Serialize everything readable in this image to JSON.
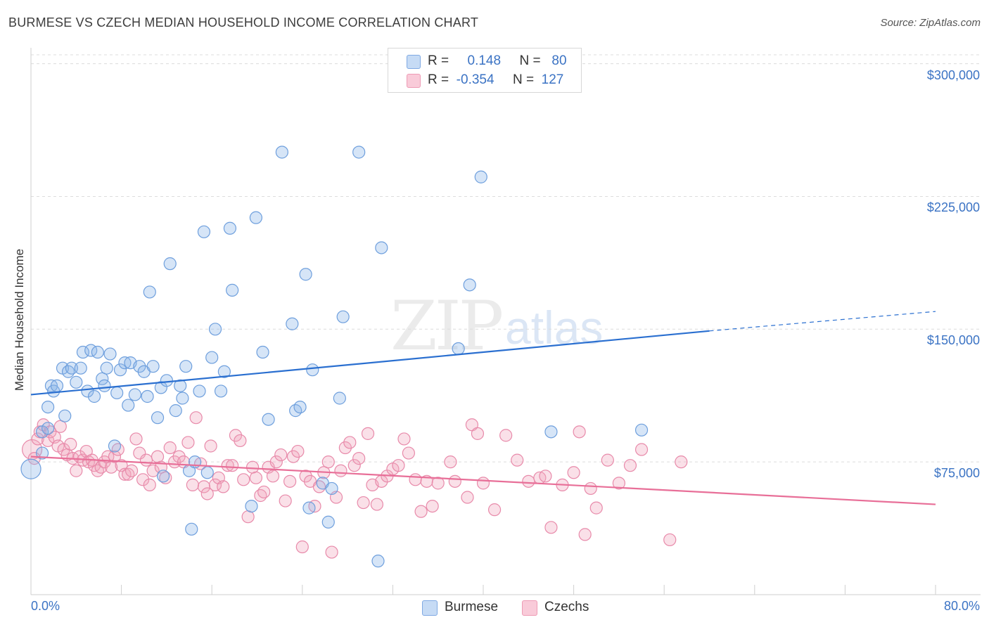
{
  "title": "BURMESE VS CZECH MEDIAN HOUSEHOLD INCOME CORRELATION CHART",
  "source": "Source: ZipAtlas.com",
  "watermark": {
    "zip": "ZIP",
    "atlas": "atlas"
  },
  "legend_top": [
    {
      "r_label": "R =",
      "r_value": "0.148",
      "n_label": "N =",
      "n_value": "80"
    },
    {
      "r_label": "R =",
      "r_value": "-0.354",
      "n_label": "N =",
      "n_value": "127"
    }
  ],
  "legend_bottom": [
    "Burmese",
    "Czechs"
  ],
  "chart_data": {
    "type": "scatter",
    "title": "BURMESE VS CZECH MEDIAN HOUSEHOLD INCOME CORRELATION CHART",
    "ylabel": "Median Household Income",
    "xlabel": "",
    "x_tick_labels": [
      "0.0%",
      "80.0%"
    ],
    "y_tick_labels": [
      "$75,000",
      "$150,000",
      "$225,000",
      "$300,000"
    ],
    "y_ticks": [
      75000,
      150000,
      225000,
      300000
    ],
    "xlim": [
      0,
      80
    ],
    "ylim": [
      0,
      305000
    ],
    "grid": true,
    "colors": {
      "Burmese": "#8ab4e8",
      "Czechs": "#f2a7be",
      "Burmese_line": "#2a6fd0",
      "Czechs_line": "#e86f98",
      "axis_label": "#3b73c4"
    },
    "series": [
      {
        "name": "Burmese",
        "r": 0.148,
        "n": 80,
        "trend": {
          "x0": 0,
          "y0": 113000,
          "x1": 60,
          "y1": 149000,
          "dashed_to_x": 80,
          "dashed_to_y": 160000
        },
        "points": [
          [
            0.0,
            71000
          ],
          [
            1.0,
            80000
          ],
          [
            1.0,
            92000
          ],
          [
            1.5,
            94000
          ],
          [
            1.5,
            106000
          ],
          [
            1.8,
            118000
          ],
          [
            2.0,
            115000
          ],
          [
            2.3,
            118000
          ],
          [
            2.8,
            128000
          ],
          [
            3.0,
            101000
          ],
          [
            3.3,
            126000
          ],
          [
            3.6,
            128000
          ],
          [
            4.0,
            120000
          ],
          [
            4.4,
            128000
          ],
          [
            4.6,
            137000
          ],
          [
            5.0,
            115000
          ],
          [
            5.3,
            138000
          ],
          [
            5.6,
            112000
          ],
          [
            5.9,
            137000
          ],
          [
            6.3,
            122000
          ],
          [
            6.5,
            118000
          ],
          [
            6.7,
            128000
          ],
          [
            7.0,
            136000
          ],
          [
            7.4,
            84000
          ],
          [
            7.6,
            114000
          ],
          [
            7.9,
            127000
          ],
          [
            8.3,
            131000
          ],
          [
            8.6,
            107000
          ],
          [
            8.8,
            131000
          ],
          [
            9.2,
            113000
          ],
          [
            9.6,
            129000
          ],
          [
            10.0,
            126000
          ],
          [
            10.3,
            112000
          ],
          [
            10.5,
            171000
          ],
          [
            10.8,
            129000
          ],
          [
            11.2,
            100000
          ],
          [
            11.5,
            117000
          ],
          [
            11.7,
            67000
          ],
          [
            12.0,
            121000
          ],
          [
            12.3,
            187000
          ],
          [
            12.8,
            104000
          ],
          [
            13.2,
            118000
          ],
          [
            13.4,
            111000
          ],
          [
            13.7,
            129000
          ],
          [
            14.0,
            70000
          ],
          [
            14.2,
            37000
          ],
          [
            14.5,
            75000
          ],
          [
            14.9,
            115000
          ],
          [
            15.3,
            205000
          ],
          [
            15.6,
            69000
          ],
          [
            16.0,
            134000
          ],
          [
            16.3,
            150000
          ],
          [
            16.8,
            115000
          ],
          [
            17.1,
            126000
          ],
          [
            17.6,
            207000
          ],
          [
            17.8,
            172000
          ],
          [
            19.5,
            50000
          ],
          [
            19.9,
            213000
          ],
          [
            20.5,
            137000
          ],
          [
            21.0,
            99000
          ],
          [
            22.2,
            250000
          ],
          [
            23.1,
            153000
          ],
          [
            23.4,
            104000
          ],
          [
            23.8,
            106000
          ],
          [
            24.3,
            181000
          ],
          [
            24.6,
            49000
          ],
          [
            24.9,
            127000
          ],
          [
            25.8,
            63000
          ],
          [
            26.3,
            41000
          ],
          [
            26.6,
            60000
          ],
          [
            27.3,
            111000
          ],
          [
            27.6,
            157000
          ],
          [
            29.0,
            250000
          ],
          [
            30.7,
            19000
          ],
          [
            31.0,
            196000
          ],
          [
            37.8,
            139000
          ],
          [
            38.8,
            175000
          ],
          [
            39.8,
            236000
          ],
          [
            46.0,
            92000
          ],
          [
            54.0,
            93000
          ]
        ]
      },
      {
        "name": "Czechs",
        "r": -0.354,
        "n": 127,
        "trend": {
          "x0": 0,
          "y0": 78000,
          "x1": 80,
          "y1": 51000
        },
        "points": [
          [
            0.1,
            82000
          ],
          [
            0.3,
            77000
          ],
          [
            0.6,
            88000
          ],
          [
            0.8,
            92000
          ],
          [
            1.1,
            96000
          ],
          [
            1.5,
            87000
          ],
          [
            1.7,
            92000
          ],
          [
            2.1,
            89000
          ],
          [
            2.4,
            84000
          ],
          [
            2.6,
            95000
          ],
          [
            2.9,
            82000
          ],
          [
            3.2,
            79000
          ],
          [
            3.5,
            85000
          ],
          [
            3.7,
            77000
          ],
          [
            4.0,
            70000
          ],
          [
            4.3,
            78000
          ],
          [
            4.6,
            76000
          ],
          [
            4.9,
            81000
          ],
          [
            5.1,
            75000
          ],
          [
            5.4,
            76000
          ],
          [
            5.6,
            73000
          ],
          [
            5.9,
            70000
          ],
          [
            6.2,
            72000
          ],
          [
            6.5,
            75000
          ],
          [
            6.8,
            78000
          ],
          [
            7.1,
            72000
          ],
          [
            7.4,
            78000
          ],
          [
            7.7,
            82000
          ],
          [
            8.0,
            73000
          ],
          [
            8.3,
            68000
          ],
          [
            8.6,
            68000
          ],
          [
            8.9,
            70000
          ],
          [
            9.3,
            88000
          ],
          [
            9.6,
            80000
          ],
          [
            9.9,
            65000
          ],
          [
            10.2,
            76000
          ],
          [
            10.5,
            62000
          ],
          [
            10.8,
            70000
          ],
          [
            11.2,
            78000
          ],
          [
            11.5,
            72000
          ],
          [
            11.9,
            66000
          ],
          [
            12.3,
            83000
          ],
          [
            12.7,
            75000
          ],
          [
            13.1,
            78000
          ],
          [
            13.5,
            75000
          ],
          [
            13.9,
            86000
          ],
          [
            14.3,
            62000
          ],
          [
            14.6,
            100000
          ],
          [
            15.0,
            74000
          ],
          [
            15.3,
            61000
          ],
          [
            15.6,
            57000
          ],
          [
            15.9,
            84000
          ],
          [
            16.3,
            62000
          ],
          [
            16.6,
            66000
          ],
          [
            17.0,
            61000
          ],
          [
            17.4,
            73000
          ],
          [
            17.8,
            73000
          ],
          [
            18.1,
            90000
          ],
          [
            18.5,
            87000
          ],
          [
            18.8,
            65000
          ],
          [
            19.2,
            44000
          ],
          [
            19.6,
            72000
          ],
          [
            19.9,
            66000
          ],
          [
            20.3,
            56000
          ],
          [
            20.6,
            58000
          ],
          [
            21.0,
            72000
          ],
          [
            21.4,
            67000
          ],
          [
            21.7,
            75000
          ],
          [
            22.1,
            79000
          ],
          [
            22.5,
            53000
          ],
          [
            22.9,
            64000
          ],
          [
            23.2,
            78000
          ],
          [
            23.6,
            81000
          ],
          [
            24.0,
            27000
          ],
          [
            24.3,
            67000
          ],
          [
            24.7,
            64000
          ],
          [
            25.1,
            50000
          ],
          [
            25.5,
            61000
          ],
          [
            25.9,
            69000
          ],
          [
            26.3,
            75000
          ],
          [
            26.6,
            24000
          ],
          [
            27.0,
            55000
          ],
          [
            27.4,
            70000
          ],
          [
            27.8,
            83000
          ],
          [
            28.2,
            86000
          ],
          [
            28.6,
            73000
          ],
          [
            29.0,
            77000
          ],
          [
            29.4,
            52000
          ],
          [
            29.8,
            91000
          ],
          [
            30.2,
            62000
          ],
          [
            30.6,
            51000
          ],
          [
            31.0,
            64000
          ],
          [
            31.5,
            67000
          ],
          [
            32.0,
            71000
          ],
          [
            32.5,
            73000
          ],
          [
            33.0,
            88000
          ],
          [
            33.4,
            80000
          ],
          [
            34.0,
            65000
          ],
          [
            34.5,
            47000
          ],
          [
            35.0,
            64000
          ],
          [
            35.5,
            50000
          ],
          [
            36.0,
            63000
          ],
          [
            37.1,
            75000
          ],
          [
            37.5,
            64000
          ],
          [
            38.6,
            55000
          ],
          [
            39.0,
            96000
          ],
          [
            39.5,
            91000
          ],
          [
            40.0,
            63000
          ],
          [
            41.0,
            48000
          ],
          [
            42.0,
            90000
          ],
          [
            43.0,
            76000
          ],
          [
            44.0,
            64000
          ],
          [
            45.0,
            66000
          ],
          [
            46.0,
            38000
          ],
          [
            47.0,
            62000
          ],
          [
            48.0,
            69000
          ],
          [
            49.0,
            34000
          ],
          [
            50.0,
            49000
          ],
          [
            51.0,
            76000
          ],
          [
            52.0,
            63000
          ],
          [
            53.0,
            73000
          ],
          [
            54.0,
            82000
          ],
          [
            56.5,
            31000
          ],
          [
            57.5,
            75000
          ],
          [
            48.5,
            92000
          ],
          [
            45.5,
            67000
          ],
          [
            49.5,
            60000
          ]
        ]
      }
    ]
  }
}
